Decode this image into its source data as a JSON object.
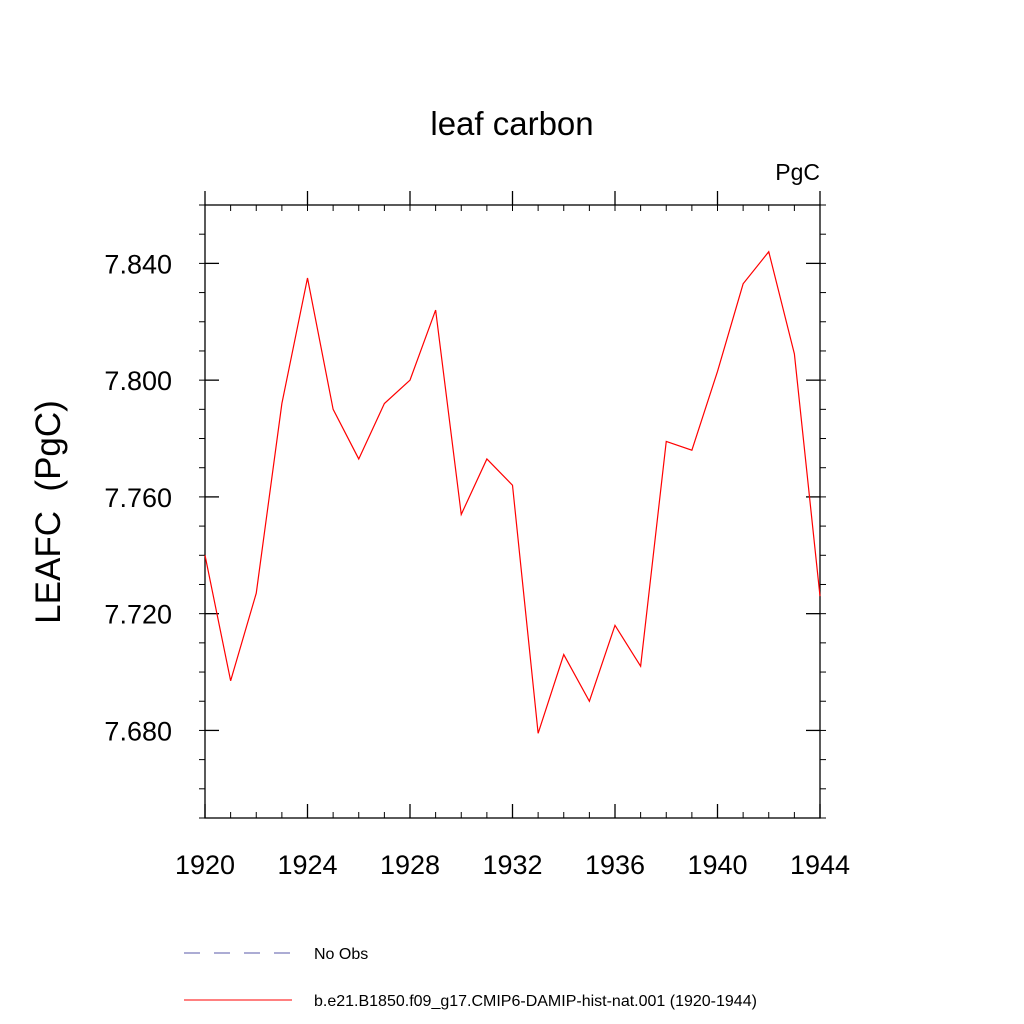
{
  "chart_data": {
    "type": "line",
    "title": "leaf carbon",
    "units_label": "PgC",
    "ylabel": "LEAFC  (PgC)",
    "xlabel": "",
    "xlim": [
      1920,
      1944
    ],
    "ylim": [
      7.65,
      7.86
    ],
    "x_ticks": [
      1920,
      1924,
      1928,
      1932,
      1936,
      1940,
      1944
    ],
    "x_tick_labels": [
      "1920",
      "1924",
      "1928",
      "1932",
      "1936",
      "1940",
      "1944"
    ],
    "y_ticks": [
      7.68,
      7.72,
      7.76,
      7.8,
      7.84
    ],
    "y_tick_labels": [
      "7.680",
      "7.720",
      "7.760",
      "7.800",
      "7.840"
    ],
    "grid": false,
    "legend_position": "bottom",
    "series": [
      {
        "name": "b.e21.B1850.f09_g17.CMIP6-DAMIP-hist-nat.001 (1920-1944)",
        "color": "#ff0000",
        "style": "solid",
        "x": [
          1920,
          1921,
          1922,
          1923,
          1924,
          1925,
          1926,
          1927,
          1928,
          1929,
          1930,
          1931,
          1932,
          1933,
          1934,
          1935,
          1936,
          1937,
          1938,
          1939,
          1940,
          1941,
          1942,
          1943,
          1944
        ],
        "y": [
          7.74,
          7.697,
          7.727,
          7.792,
          7.835,
          7.79,
          7.773,
          7.792,
          7.8,
          7.824,
          7.754,
          7.773,
          7.764,
          7.679,
          7.706,
          7.69,
          7.716,
          7.702,
          7.779,
          7.776,
          7.803,
          7.833,
          7.844,
          7.809,
          7.726
        ]
      }
    ],
    "legend": [
      {
        "label": "No Obs",
        "color": "#5a5aa8",
        "style": "dashed"
      },
      {
        "label": "b.e21.B1850.f09_g17.CMIP6-DAMIP-hist-nat.001 (1920-1944)",
        "color": "#ff0000",
        "style": "solid"
      }
    ]
  }
}
